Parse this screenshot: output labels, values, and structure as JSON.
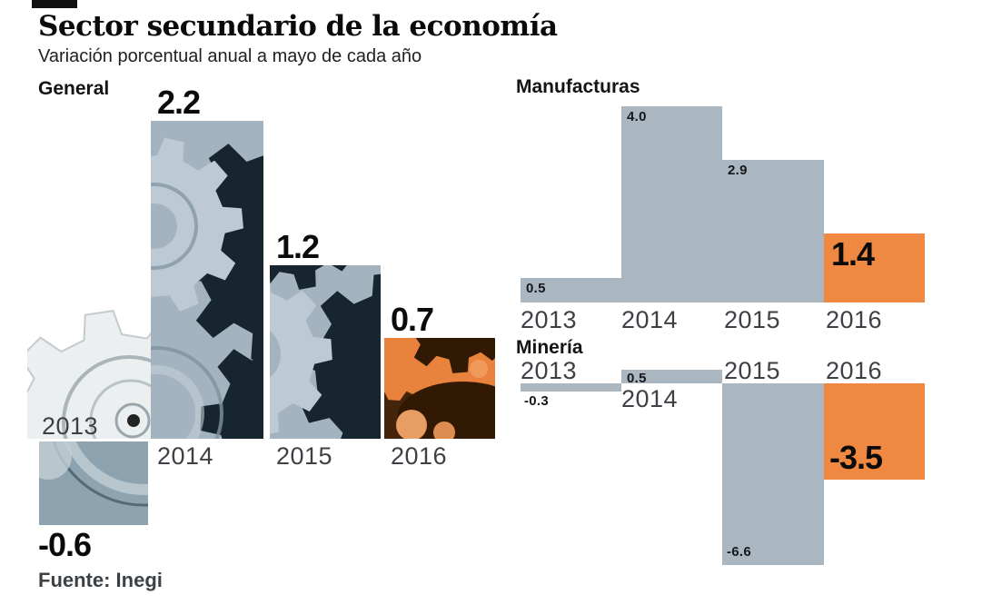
{
  "header": {
    "title": "Sector secundario de la economía",
    "subtitle": "Variación porcentual anual a mayo de cada año"
  },
  "footer": {
    "source": "Fuente: Inegi"
  },
  "colors": {
    "bar_gray": "#aab6c0",
    "bar_orange": "#ef8840",
    "photo_base": "#a3b4c0",
    "photo_light": "#bdcad4",
    "photo_dark": "#17252f",
    "photo_orange": "#e8823c",
    "photo_orange_dark": "#321904",
    "negative_bar": "#8da3af",
    "backdrop_gear": "#eceff0",
    "year_label": "#3d4145",
    "value_label": "#0b0b0b"
  },
  "chart_data": [
    {
      "id": "general",
      "type": "bar",
      "title": "General",
      "categories": [
        "2013",
        "2014",
        "2015",
        "2016"
      ],
      "values": [
        -0.6,
        2.2,
        1.2,
        0.7
      ],
      "highlight_category": "2016",
      "style": "photo-gears",
      "legend": "none",
      "grid": false
    },
    {
      "id": "manufacturas",
      "type": "bar",
      "title": "Manufacturas",
      "categories": [
        "2013",
        "2014",
        "2015",
        "2016"
      ],
      "values": [
        0.5,
        4.0,
        2.9,
        1.4
      ],
      "highlight_category": "2016",
      "style": "flat",
      "legend": "none",
      "grid": false
    },
    {
      "id": "mineria",
      "type": "bar",
      "title": "Minería",
      "categories": [
        "2013",
        "2014",
        "2015",
        "2016"
      ],
      "values": [
        -0.3,
        0.5,
        -6.6,
        -3.5
      ],
      "highlight_category": "2016",
      "style": "flat",
      "legend": "none",
      "grid": false
    }
  ]
}
